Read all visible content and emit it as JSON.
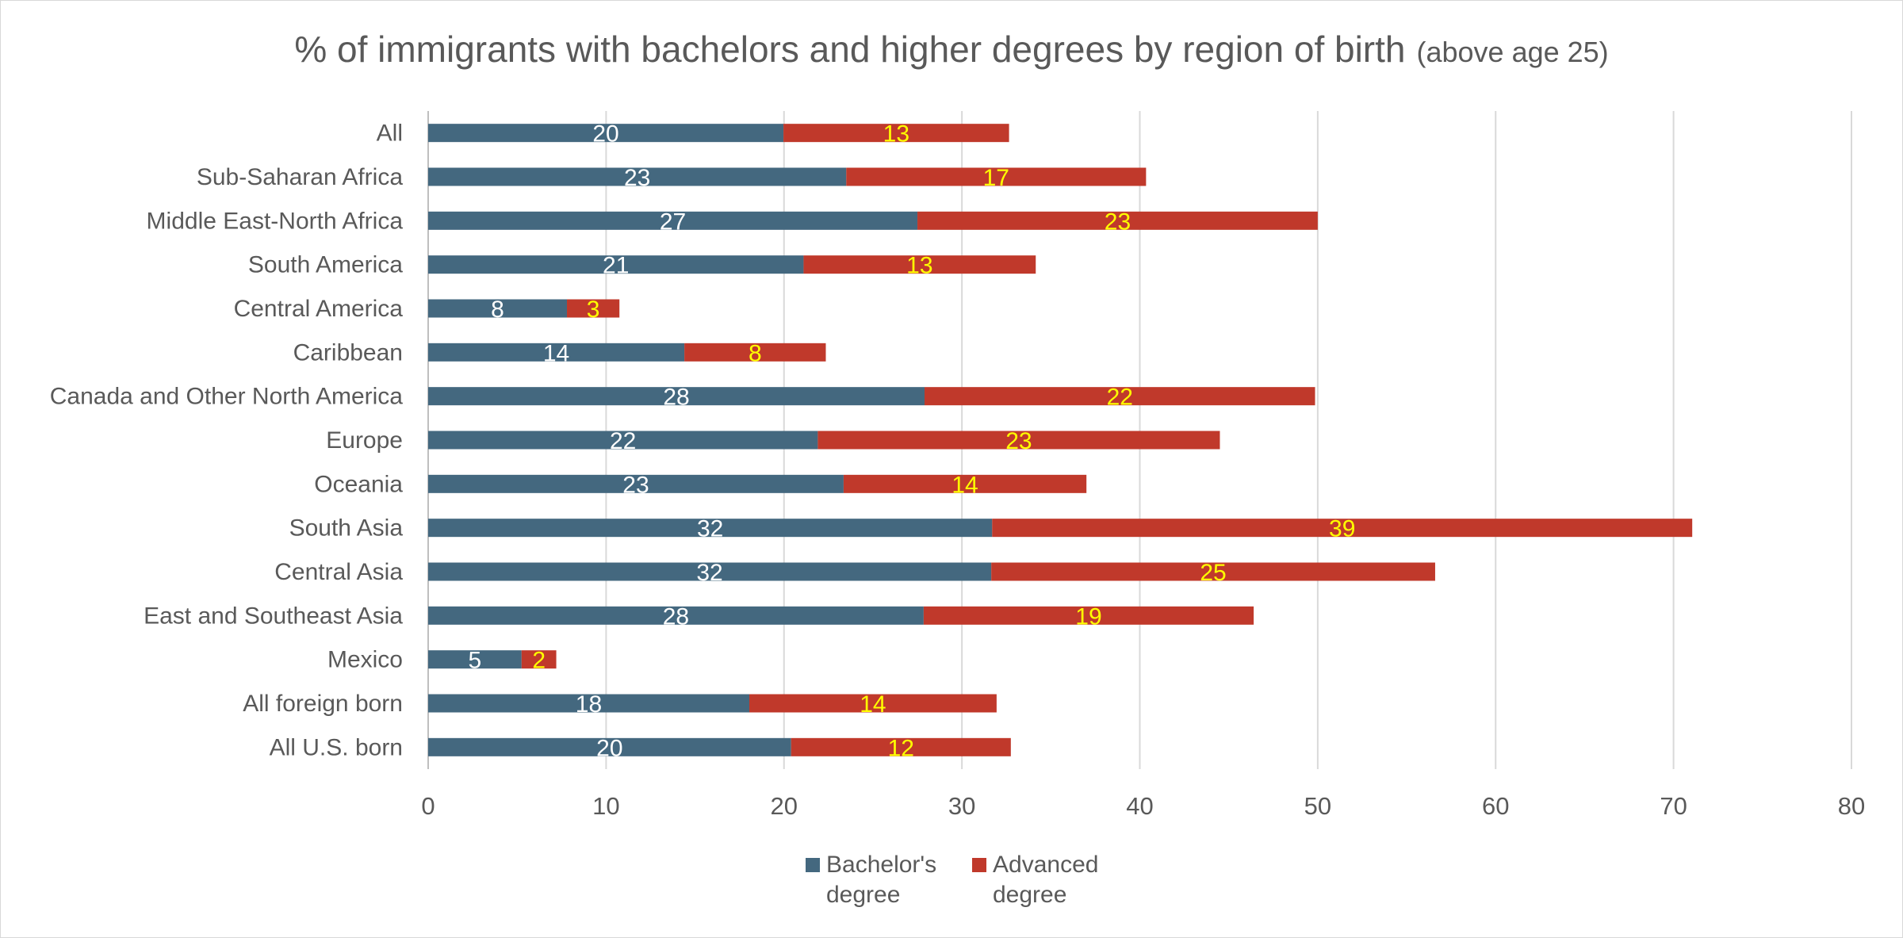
{
  "chart_data": {
    "type": "bar",
    "orientation": "horizontal",
    "stacked": true,
    "title": "% of immigrants with bachelors and higher degrees by region of birth",
    "subtitle": "(above age 25)",
    "categories": [
      "All",
      "Sub-Saharan Africa",
      "Middle East-North Africa",
      "South America",
      "Central America",
      "Caribbean",
      "Canada and Other North America",
      "Europe",
      "Oceania",
      "South Asia",
      "Central Asia",
      "East and Southeast Asia",
      "Mexico",
      "All foreign born",
      "All U.S. born"
    ],
    "series": [
      {
        "name": "Bachelor's degree",
        "legend_lines": [
          "Bachelor's",
          "degree"
        ],
        "color": "#44687f",
        "label_color": "#ffffff",
        "values": [
          19.97,
          23.5,
          27.5,
          21.1,
          7.8,
          14.4,
          27.9,
          21.9,
          23.35,
          31.7,
          31.65,
          27.85,
          5.25,
          18.05,
          20.4
        ],
        "labels": [
          "20",
          "23",
          "27",
          "21",
          "8",
          "14",
          "28",
          "22",
          "23",
          "32",
          "32",
          "28",
          "5",
          "18",
          "20"
        ]
      },
      {
        "name": "Advanced degree",
        "legend_lines": [
          "Advanced",
          "degree"
        ],
        "color": "#c0392b",
        "label_color": "#ffff00",
        "values": [
          12.68,
          16.85,
          22.5,
          13.05,
          2.95,
          7.95,
          21.95,
          22.6,
          13.65,
          39.35,
          24.95,
          18.55,
          1.95,
          13.9,
          12.35
        ],
        "labels": [
          "13",
          "17",
          "23",
          "13",
          "3",
          "8",
          "22",
          "23",
          "14",
          "39",
          "25",
          "19",
          "2",
          "14",
          "12"
        ]
      }
    ],
    "xlim": [
      0,
      80
    ],
    "xticks": [
      "0",
      "10",
      "20",
      "30",
      "40",
      "50",
      "60",
      "70",
      "80"
    ],
    "grid": "vertical",
    "legend": "bottom"
  }
}
